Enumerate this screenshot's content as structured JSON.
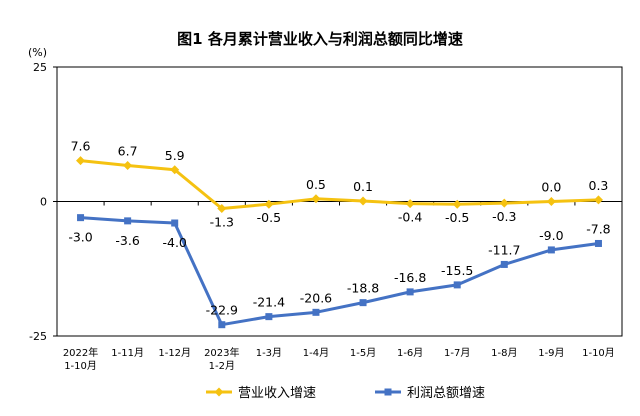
{
  "chart_data": {
    "type": "line",
    "title": "图1  各月累计营业收入与利润总额同比增速",
    "ylabel": "(%)",
    "ylim": [
      -25,
      25
    ],
    "yticks": [
      "25",
      "0",
      "-25"
    ],
    "categories": [
      [
        "2022年",
        "1-10月"
      ],
      [
        "1-11月"
      ],
      [
        "1-12月"
      ],
      [
        "2023年",
        "1-2月"
      ],
      [
        "1-3月"
      ],
      [
        "1-4月"
      ],
      [
        "1-5月"
      ],
      [
        "1-6月"
      ],
      [
        "1-7月"
      ],
      [
        "1-8月"
      ],
      [
        "1-9月"
      ],
      [
        "1-10月"
      ]
    ],
    "series": [
      {
        "name": "营业收入增速",
        "color": "#F5C211",
        "values": [
          7.6,
          6.7,
          5.9,
          -1.3,
          -0.5,
          0.5,
          0.1,
          -0.4,
          -0.5,
          -0.3,
          0.0,
          0.3
        ],
        "labels": [
          "7.6",
          "6.7",
          "5.9",
          "-1.3",
          "-0.5",
          "0.5",
          "0.1",
          "-0.4",
          "-0.5",
          "-0.3",
          "0.0",
          "0.3"
        ]
      },
      {
        "name": "利润总额增速",
        "color": "#4472C4",
        "values": [
          -3.0,
          -3.6,
          -4.0,
          -22.9,
          -21.4,
          -20.6,
          -18.8,
          -16.8,
          -15.5,
          -11.7,
          -9.0,
          -7.8
        ],
        "labels": [
          "-3.0",
          "-3.6",
          "-4.0",
          "-22.9",
          "-21.4",
          "-20.6",
          "-18.8",
          "-16.8",
          "-15.5",
          "-11.7",
          "-9.0",
          "-7.8"
        ]
      }
    ],
    "legend_position": "bottom"
  }
}
